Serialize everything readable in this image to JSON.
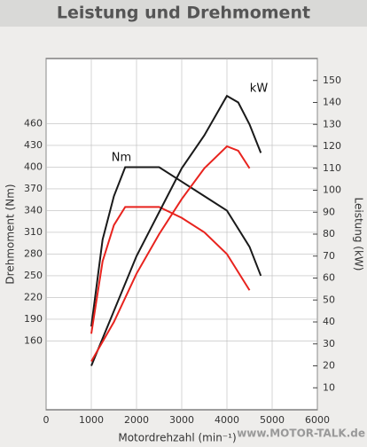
{
  "chart_data": {
    "type": "line",
    "title": "Leistung und Drehmoment",
    "xlabel": "Motordrehzahl (min⁻¹)",
    "ylabel": "Drehmoment (Nm)",
    "y2label": "Leistung (kW)",
    "annotations": [
      "Nm",
      "kW"
    ],
    "watermark": "www.MOTOR-TALK.de",
    "xlim": [
      0,
      6000
    ],
    "xticks": [
      0,
      1000,
      2000,
      3000,
      4000,
      5000,
      6000
    ],
    "ylim": [
      65,
      550
    ],
    "yticks": [
      160,
      190,
      220,
      250,
      280,
      310,
      340,
      370,
      400,
      430,
      460
    ],
    "y2lim": [
      0,
      160
    ],
    "y2ticks": [
      10,
      20,
      30,
      40,
      50,
      60,
      70,
      80,
      90,
      100,
      110,
      120,
      130,
      140,
      150
    ],
    "grid": true,
    "series": [
      {
        "color": "#1a1a1a",
        "x": [
          1000,
          1250,
          1500,
          1750,
          2000,
          2500,
          3000,
          3500,
          4000,
          4500,
          4750
        ],
        "values": [
          180,
          300,
          360,
          400,
          400,
          400,
          380,
          360,
          340,
          290,
          250
        ]
      },
      {
        "color": "#e8231e",
        "x": [
          1000,
          1250,
          1500,
          1750,
          2000,
          2500,
          3000,
          3500,
          4000,
          4500
        ],
        "values": [
          170,
          270,
          320,
          345,
          345,
          345,
          330,
          310,
          280,
          230
        ]
      },
      {
        "color": "#1a1a1a",
        "axis": "y2",
        "x": [
          1000,
          1500,
          2000,
          2500,
          3000,
          3500,
          4000,
          4250,
          4500,
          4750
        ],
        "values": [
          20,
          45,
          70,
          90,
          110,
          125,
          143,
          140,
          130,
          117
        ]
      },
      {
        "color": "#e8231e",
        "axis": "y2",
        "x": [
          1000,
          1500,
          2000,
          2500,
          3000,
          3500,
          4000,
          4250,
          4500
        ],
        "values": [
          22,
          40,
          62,
          80,
          96,
          110,
          120,
          118,
          110
        ]
      }
    ]
  }
}
